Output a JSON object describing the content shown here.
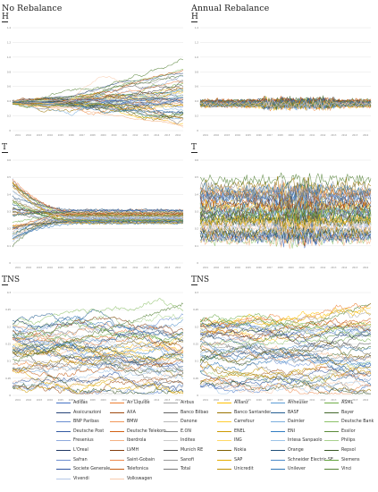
{
  "columns": {
    "left": "No Rebalance",
    "right": "Annual Rebalance"
  },
  "panels": [
    {
      "id": "H-left",
      "label": "H",
      "col": "left",
      "row": 0,
      "yticks": [
        "0",
        "0.2",
        "0.4",
        "0.6",
        "0.8",
        "1.0",
        "1.2",
        "1.4"
      ],
      "ymax": 1.4,
      "style": "fan_up"
    },
    {
      "id": "H-right",
      "label": "H",
      "col": "right",
      "row": 0,
      "yticks": [
        "0",
        "0.2",
        "0.4",
        "0.6",
        "0.8",
        "1.0",
        "1.2",
        "1.4"
      ],
      "ymax": 1.4,
      "style": "flat"
    },
    {
      "id": "T-left",
      "label": "T",
      "col": "left",
      "row": 1,
      "yticks": [
        "0",
        "0.1",
        "0.2",
        "0.3",
        "0.4",
        "0.5",
        "0.6"
      ],
      "ymax": 0.6,
      "style": "converge"
    },
    {
      "id": "T-right",
      "label": "T",
      "col": "right",
      "row": 1,
      "yticks": [
        "0",
        "0.1",
        "0.2",
        "0.3",
        "0.4",
        "0.5",
        "0.6"
      ],
      "ymax": 0.6,
      "style": "band"
    },
    {
      "id": "TNS-left",
      "label": "TNS",
      "col": "left",
      "row": 2,
      "yticks": [
        "0",
        "0.05",
        "0.1",
        "0.15",
        "0.2",
        "0.25",
        "0.3"
      ],
      "ymax": 0.3,
      "style": "tns"
    },
    {
      "id": "TNS-right",
      "label": "TNS",
      "col": "right",
      "row": 2,
      "yticks": [
        "0",
        "0.05",
        "0.1",
        "0.15",
        "0.2",
        "0.25",
        "0.3"
      ],
      "ymax": 0.3,
      "style": "tns"
    }
  ],
  "xticks": [
    "2001",
    "2002",
    "2003",
    "2004",
    "2005",
    "2006",
    "2007",
    "2008",
    "2009",
    "2010",
    "2011",
    "2012",
    "2013",
    "2014",
    "2015",
    "2016"
  ],
  "chart_data": {
    "type": "line",
    "layout": "2x3 small multiples",
    "series": [
      {
        "name": "Adidas",
        "color": "#4472c4"
      },
      {
        "name": "Air Liquide",
        "color": "#ed7d31"
      },
      {
        "name": "Airbus",
        "color": "#a5a5a5"
      },
      {
        "name": "Allianz",
        "color": "#ffc000"
      },
      {
        "name": "Anheuser",
        "color": "#5b9bd5"
      },
      {
        "name": "ASML",
        "color": "#70ad47"
      },
      {
        "name": "Assicurazioni",
        "color": "#264478"
      },
      {
        "name": "AXA",
        "color": "#9e480e"
      },
      {
        "name": "Banco Bilbao",
        "color": "#636363"
      },
      {
        "name": "Banco Santander",
        "color": "#997300"
      },
      {
        "name": "BASF",
        "color": "#255e91"
      },
      {
        "name": "Bayer",
        "color": "#43682b"
      },
      {
        "name": "BNP Paribas",
        "color": "#698ed0"
      },
      {
        "name": "BMW",
        "color": "#f1975a"
      },
      {
        "name": "Danone",
        "color": "#b7b7b7"
      },
      {
        "name": "Carrefour",
        "color": "#ffcd33"
      },
      {
        "name": "Daimler",
        "color": "#7cafdd"
      },
      {
        "name": "Deutsche Bank",
        "color": "#8cc168"
      },
      {
        "name": "Deutsche Post",
        "color": "#335aa1"
      },
      {
        "name": "Deutsche Telekom",
        "color": "#d26012"
      },
      {
        "name": "E.ON",
        "color": "#848484"
      },
      {
        "name": "ENEL",
        "color": "#cc9a00"
      },
      {
        "name": "ENI",
        "color": "#327dc2"
      },
      {
        "name": "Essilor",
        "color": "#5a8a39"
      },
      {
        "name": "Fresenius",
        "color": "#8faadc"
      },
      {
        "name": "Iberdrola",
        "color": "#f4b183"
      },
      {
        "name": "Inditex",
        "color": "#c9c9c9"
      },
      {
        "name": "ING",
        "color": "#ffd966"
      },
      {
        "name": "Intesa Sanpaolo",
        "color": "#9dc3e6"
      },
      {
        "name": "Philips",
        "color": "#a9d18e"
      },
      {
        "name": "L'Oreal",
        "color": "#203864"
      },
      {
        "name": "LVMH",
        "color": "#843c0c"
      },
      {
        "name": "Munich RE",
        "color": "#525252"
      },
      {
        "name": "Nokia",
        "color": "#7f6000"
      },
      {
        "name": "Orange",
        "color": "#1f4e79"
      },
      {
        "name": "Repsol",
        "color": "#385723"
      },
      {
        "name": "Safran",
        "color": "#6f8fd0"
      },
      {
        "name": "Saint-Gobain",
        "color": "#ee8a4e"
      },
      {
        "name": "Sanofi",
        "color": "#9a9a9a"
      },
      {
        "name": "SAP",
        "color": "#e6ad00"
      },
      {
        "name": "Schneider Electric SE",
        "color": "#4f8dc9"
      },
      {
        "name": "Siemens",
        "color": "#63a33d"
      },
      {
        "name": "Societe Generale",
        "color": "#2f54a0"
      },
      {
        "name": "Telefonica",
        "color": "#c55a11"
      },
      {
        "name": "Total",
        "color": "#7b7b7b"
      },
      {
        "name": "Unicredit",
        "color": "#bf9000"
      },
      {
        "name": "Unilever",
        "color": "#2e75b6"
      },
      {
        "name": "Vinci",
        "color": "#548235"
      },
      {
        "name": "Vivendi",
        "color": "#b4c7e7"
      },
      {
        "name": "Volkswagen",
        "color": "#f8cbad"
      }
    ]
  }
}
